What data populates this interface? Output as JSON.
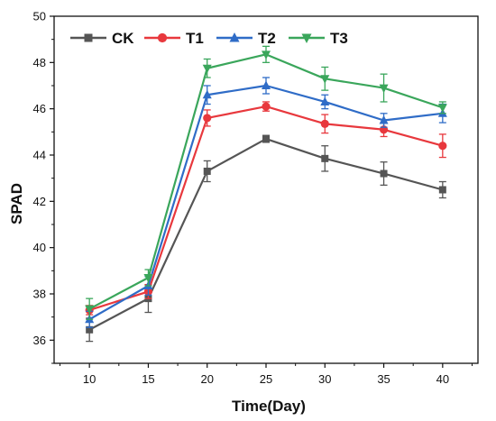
{
  "chart_data": {
    "type": "line",
    "xlabel": "Time(Day)",
    "ylabel": "SPAD",
    "x": [
      10,
      15,
      20,
      25,
      30,
      35,
      40
    ],
    "xlim": [
      7,
      43
    ],
    "ylim": [
      35,
      50
    ],
    "xticks": [
      10,
      15,
      20,
      25,
      30,
      35,
      40
    ],
    "yticks": [
      36,
      38,
      40,
      42,
      44,
      46,
      48,
      50
    ],
    "legend_position": "top-left",
    "grid": false,
    "series": [
      {
        "name": "CK",
        "color": "#555555",
        "marker": "square",
        "values": [
          36.45,
          37.8,
          43.3,
          44.7,
          43.85,
          43.2,
          42.5
        ],
        "errors": [
          0.5,
          0.6,
          0.45,
          0.15,
          0.55,
          0.5,
          0.35
        ]
      },
      {
        "name": "T1",
        "color": "#e8383d",
        "marker": "circle",
        "values": [
          37.3,
          38.1,
          45.6,
          46.1,
          45.35,
          45.1,
          44.4
        ],
        "errors": [
          0.2,
          0.3,
          0.35,
          0.2,
          0.4,
          0.3,
          0.5
        ]
      },
      {
        "name": "T2",
        "color": "#2f6cc7",
        "marker": "triangle-up",
        "values": [
          36.9,
          38.35,
          46.6,
          47.0,
          46.3,
          45.5,
          45.8
        ],
        "errors": [
          0.35,
          0.4,
          0.4,
          0.35,
          0.3,
          0.3,
          0.4
        ]
      },
      {
        "name": "T3",
        "color": "#3aa65b",
        "marker": "triangle-down",
        "values": [
          37.35,
          38.7,
          47.75,
          48.35,
          47.3,
          46.9,
          46.05
        ],
        "errors": [
          0.45,
          0.35,
          0.4,
          0.35,
          0.5,
          0.6,
          0.25
        ]
      }
    ]
  }
}
